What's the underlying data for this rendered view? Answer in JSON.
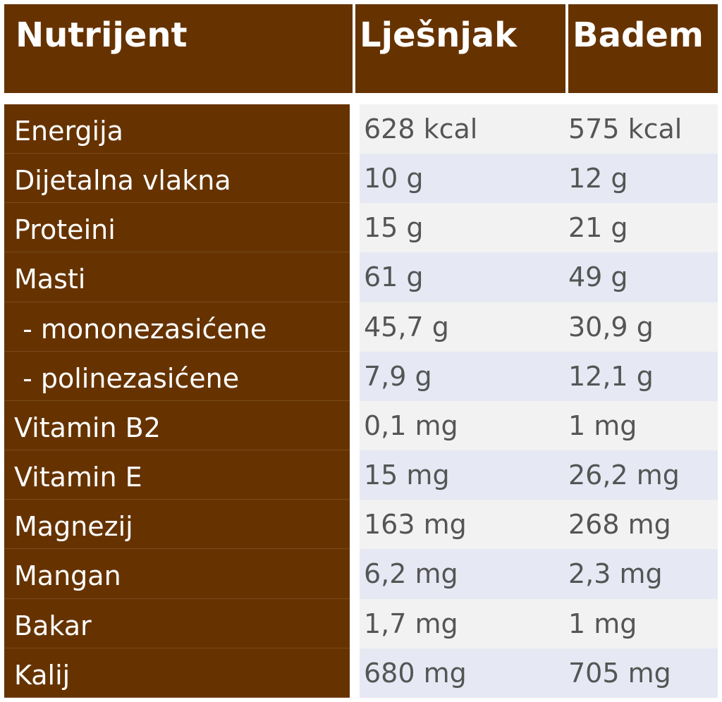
{
  "header": {
    "col_nutrient": "Nutrijent",
    "col_hazelnut": "Lješnjak",
    "col_almond": "Badem"
  },
  "rows": [
    {
      "name": "Energija",
      "hazelnut": "628 kcal",
      "almond": "575 kcal"
    },
    {
      "name": "Dijetalna vlakna",
      "hazelnut": "10 g",
      "almond": "12 g"
    },
    {
      "name": "Proteini",
      "hazelnut": "15 g",
      "almond": "21 g"
    },
    {
      "name": "Masti",
      "hazelnut": "61 g",
      "almond": "49 g"
    },
    {
      "name": " - mononezasićene",
      "hazelnut": "45,7 g",
      "almond": "30,9 g"
    },
    {
      "name": " - polinezasićene",
      "hazelnut": "7,9 g",
      "almond": "12,1 g"
    },
    {
      "name": "Vitamin B2",
      "hazelnut": "0,1 mg",
      "almond": "1 mg"
    },
    {
      "name": "Vitamin E",
      "hazelnut": "15 mg",
      "almond": "26,2 mg"
    },
    {
      "name": "Magnezij",
      "hazelnut": "163 mg",
      "almond": "268 mg"
    },
    {
      "name": "Mangan",
      "hazelnut": "6,2 mg",
      "almond": "2,3 mg"
    },
    {
      "name": "Bakar",
      "hazelnut": "1,7 mg",
      "almond": "1 mg"
    },
    {
      "name": "Kalij",
      "hazelnut": "680 mg",
      "almond": "705 mg"
    }
  ],
  "colors": {
    "header_bg": "#663300",
    "row_odd_bg": "#f2f2f2",
    "row_even_bg": "#e6e9f4",
    "value_text": "#555555"
  }
}
